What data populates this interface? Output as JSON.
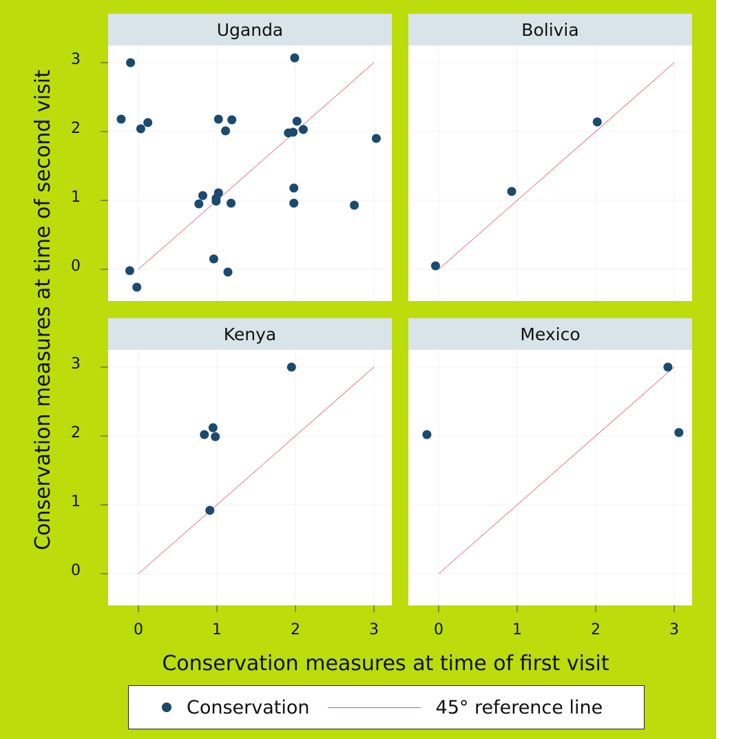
{
  "chart_data": {
    "type": "scatter",
    "xlabel": "Conservation measures at time of first visit",
    "ylabel": "Conservation measures at time of second visit",
    "xlim": [
      -0.4,
      3.2
    ],
    "ylim": [
      -0.45,
      3.25
    ],
    "xticks": [
      0,
      1,
      2,
      3
    ],
    "yticks": [
      0,
      1,
      2,
      3
    ],
    "grid": true,
    "colors": {
      "background": "#bcdc0c",
      "header": "#d9e4ea",
      "point": "#1b4a70",
      "refline": "#d45a6a"
    },
    "legend": {
      "placement": "bottom",
      "entries": [
        "Conservation",
        "45° reference line"
      ]
    },
    "panels": [
      {
        "title": "Uganda",
        "points": [
          [
            -0.1,
            3.0
          ],
          [
            1.99,
            3.07
          ],
          [
            -0.22,
            2.18
          ],
          [
            0.03,
            2.04
          ],
          [
            0.12,
            2.13
          ],
          [
            1.02,
            2.18
          ],
          [
            1.19,
            2.17
          ],
          [
            1.11,
            2.01
          ],
          [
            1.91,
            1.98
          ],
          [
            1.97,
            1.99
          ],
          [
            2.02,
            2.15
          ],
          [
            2.1,
            2.03
          ],
          [
            3.03,
            1.9
          ],
          [
            0.82,
            1.07
          ],
          [
            0.77,
            0.95
          ],
          [
            0.99,
            1.03
          ],
          [
            0.99,
            0.99
          ],
          [
            1.02,
            1.11
          ],
          [
            1.18,
            0.96
          ],
          [
            1.98,
            1.18
          ],
          [
            1.98,
            0.96
          ],
          [
            2.75,
            0.93
          ],
          [
            -0.11,
            -0.02
          ],
          [
            -0.02,
            -0.26
          ],
          [
            0.96,
            0.15
          ],
          [
            1.14,
            -0.04
          ]
        ]
      },
      {
        "title": "Bolivia",
        "points": [
          [
            2.02,
            2.14
          ],
          [
            0.93,
            1.13
          ],
          [
            -0.04,
            0.05
          ]
        ]
      },
      {
        "title": "Kenya",
        "points": [
          [
            1.95,
            3.0
          ],
          [
            0.95,
            2.12
          ],
          [
            0.84,
            2.02
          ],
          [
            0.98,
            1.99
          ],
          [
            0.91,
            0.92
          ]
        ]
      },
      {
        "title": "Mexico",
        "points": [
          [
            2.92,
            3.0
          ],
          [
            -0.15,
            2.02
          ],
          [
            3.06,
            2.05
          ]
        ]
      }
    ]
  }
}
